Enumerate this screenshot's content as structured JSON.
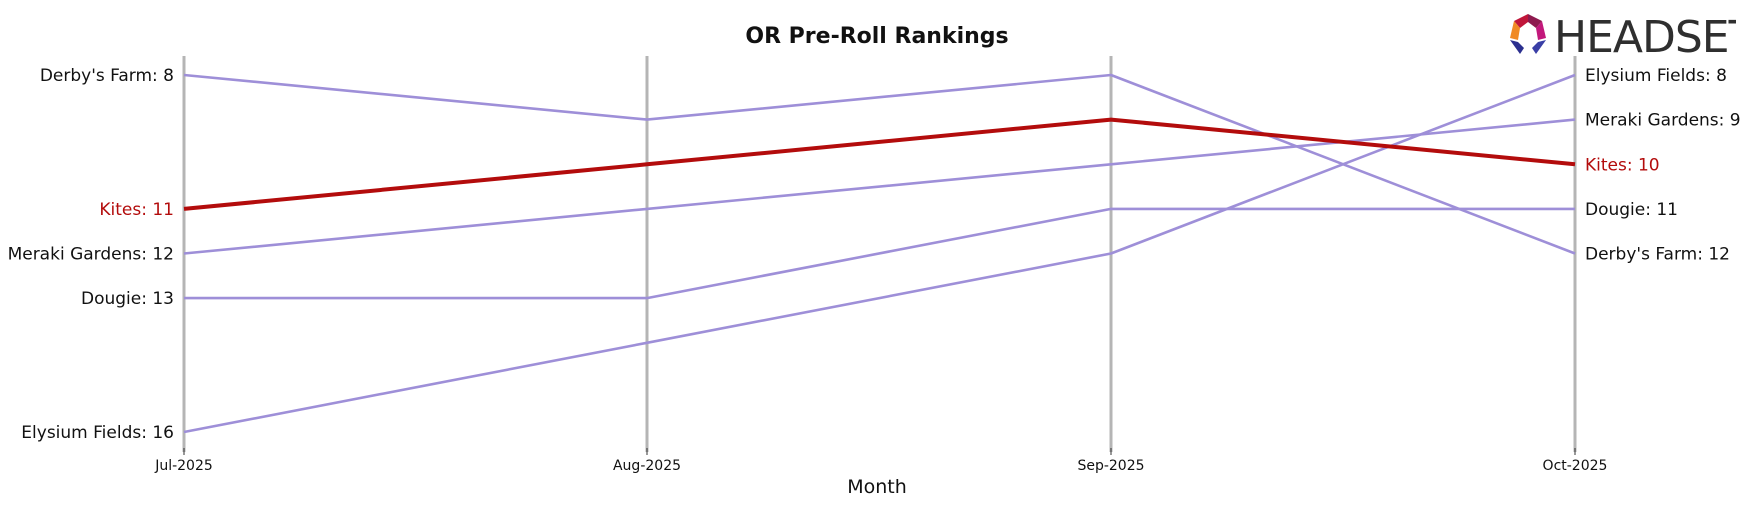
{
  "brand": {
    "name": "HEADSET"
  },
  "colors": {
    "highlight": "#b30c0c",
    "series": "#9e8fd8",
    "gridline": "#b5b5b5",
    "text": "#111111"
  },
  "chart_data": {
    "type": "line",
    "title": "OR Pre-Roll Rankings",
    "xlabel": "Month",
    "ylabel": "",
    "x": [
      "Jul-2025",
      "Aug-2025",
      "Sep-2025",
      "Oct-2025"
    ],
    "y_inverted": true,
    "ylim": [
      8,
      16
    ],
    "series": [
      {
        "name": "Derby's Farm",
        "values": [
          8,
          9,
          8,
          12
        ],
        "highlight": false
      },
      {
        "name": "Kites",
        "values": [
          11,
          10,
          9,
          10
        ],
        "highlight": true
      },
      {
        "name": "Meraki Gardens",
        "values": [
          12,
          11,
          10,
          9
        ],
        "highlight": false
      },
      {
        "name": "Dougie",
        "values": [
          13,
          13,
          11,
          11
        ],
        "highlight": false
      },
      {
        "name": "Elysium Fields",
        "values": [
          16,
          14,
          12,
          8
        ],
        "highlight": false
      }
    ],
    "left_labels": [
      "Derby's Farm: 8",
      "Kites: 11",
      "Meraki Gardens: 12",
      "Dougie: 13",
      "Elysium Fields: 16"
    ],
    "right_labels": [
      "Derby's Farm: 12",
      "Kites: 10",
      "Meraki Gardens: 9",
      "Dougie: 11",
      "Elysium Fields: 8"
    ]
  }
}
